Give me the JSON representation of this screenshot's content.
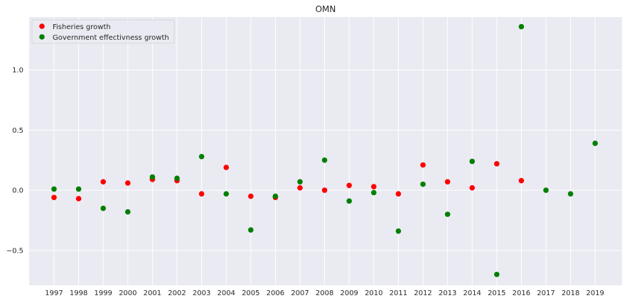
{
  "chart_data": {
    "type": "scatter",
    "title": "OMN",
    "xlabel": "",
    "ylabel": "",
    "x_categories": [
      "1997",
      "1998",
      "1999",
      "2000",
      "2001",
      "2002",
      "2003",
      "2004",
      "2005",
      "2006",
      "2007",
      "2008",
      "2009",
      "2010",
      "2011",
      "2012",
      "2013",
      "2014",
      "2015",
      "2016",
      "2017",
      "2018",
      "2019"
    ],
    "ylim": [
      -0.79,
      1.44
    ],
    "yticks": [
      -0.5,
      0.0,
      0.5,
      1.0
    ],
    "ytick_labels": [
      "−0.5",
      "0.0",
      "0.5",
      "1.0"
    ],
    "grid": true,
    "legend_position": "top-left",
    "series": [
      {
        "name": "Fisheries growth",
        "color": "#ff0000",
        "points": [
          {
            "x": "1997",
            "y": -0.06
          },
          {
            "x": "1998",
            "y": -0.07
          },
          {
            "x": "1999",
            "y": 0.07
          },
          {
            "x": "2000",
            "y": 0.06
          },
          {
            "x": "2001",
            "y": 0.09
          },
          {
            "x": "2002",
            "y": 0.08
          },
          {
            "x": "2003",
            "y": -0.03
          },
          {
            "x": "2004",
            "y": 0.19
          },
          {
            "x": "2005",
            "y": -0.05
          },
          {
            "x": "2006",
            "y": -0.06
          },
          {
            "x": "2007",
            "y": 0.02
          },
          {
            "x": "2008",
            "y": 0.0
          },
          {
            "x": "2009",
            "y": 0.04
          },
          {
            "x": "2010",
            "y": 0.03
          },
          {
            "x": "2011",
            "y": -0.03
          },
          {
            "x": "2012",
            "y": 0.21
          },
          {
            "x": "2013",
            "y": 0.07
          },
          {
            "x": "2014",
            "y": 0.02
          },
          {
            "x": "2015",
            "y": 0.22
          },
          {
            "x": "2016",
            "y": 0.08
          }
        ]
      },
      {
        "name": "Government effectivness growth",
        "color": "#008000",
        "points": [
          {
            "x": "1997",
            "y": 0.01
          },
          {
            "x": "1998",
            "y": 0.01
          },
          {
            "x": "1999",
            "y": -0.15
          },
          {
            "x": "2000",
            "y": -0.18
          },
          {
            "x": "2001",
            "y": 0.11
          },
          {
            "x": "2002",
            "y": 0.1
          },
          {
            "x": "2003",
            "y": 0.28
          },
          {
            "x": "2004",
            "y": -0.03
          },
          {
            "x": "2005",
            "y": -0.33
          },
          {
            "x": "2006",
            "y": -0.05
          },
          {
            "x": "2007",
            "y": 0.07
          },
          {
            "x": "2008",
            "y": 0.25
          },
          {
            "x": "2009",
            "y": -0.09
          },
          {
            "x": "2010",
            "y": -0.02
          },
          {
            "x": "2011",
            "y": -0.34
          },
          {
            "x": "2012",
            "y": 0.05
          },
          {
            "x": "2013",
            "y": -0.2
          },
          {
            "x": "2014",
            "y": 0.24
          },
          {
            "x": "2015",
            "y": -0.7
          },
          {
            "x": "2016",
            "y": 1.36
          },
          {
            "x": "2017",
            "y": 0.0
          },
          {
            "x": "2018",
            "y": -0.03
          },
          {
            "x": "2019",
            "y": 0.39
          }
        ]
      }
    ]
  }
}
